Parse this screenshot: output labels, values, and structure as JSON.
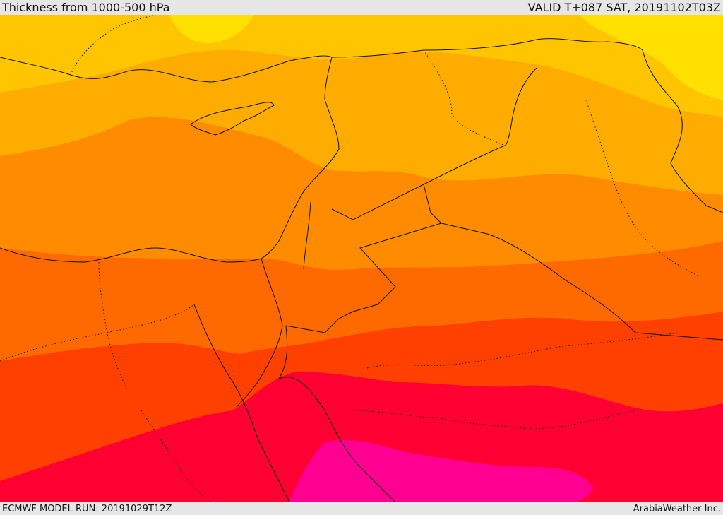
{
  "header": {
    "title": "Thickness from 1000-500 hPa",
    "valid": "VALID T+087 SAT, 20191102T03Z"
  },
  "footer": {
    "model_run": "ECMWF MODEL RUN: 20191029T12Z",
    "credit": "ArabiaWeather Inc."
  },
  "palette": {
    "band_1": "#ffe000",
    "band_2": "#ffc500",
    "band_3": "#ffac00",
    "band_4": "#ff8c00",
    "band_5": "#ff6a00",
    "band_6": "#ff4000",
    "band_7": "#ff0033",
    "band_8": "#ff0090",
    "border": "#111111"
  }
}
